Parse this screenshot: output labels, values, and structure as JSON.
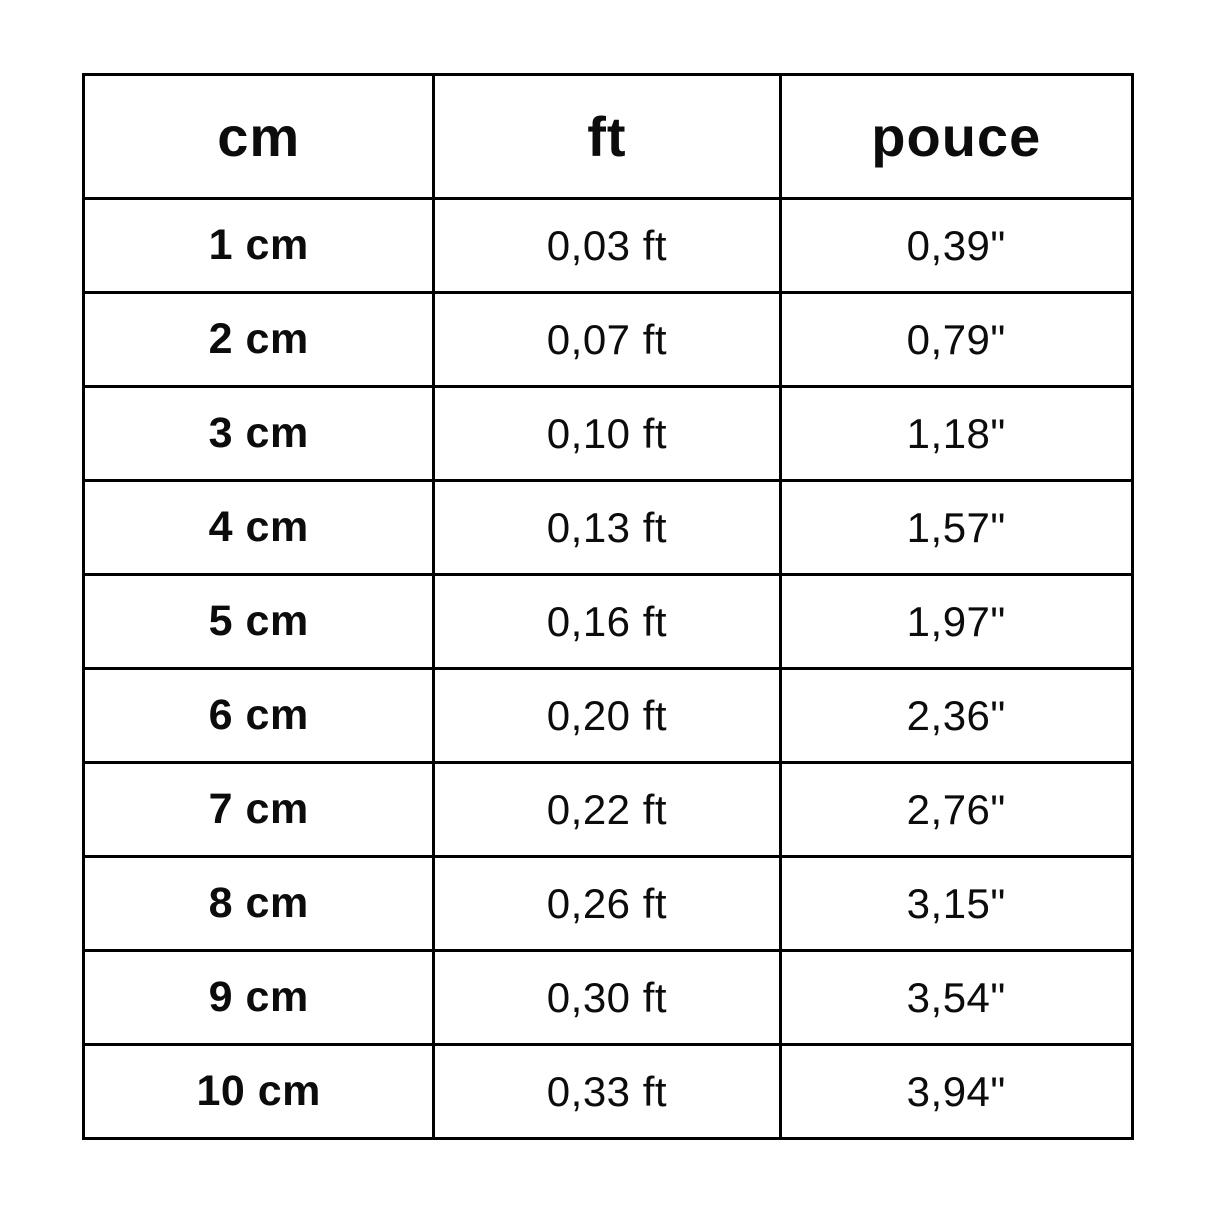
{
  "table": {
    "headers": [
      "cm",
      "ft",
      "pouce"
    ],
    "rows": [
      [
        "1 cm",
        "0,03 ft",
        "0,39\""
      ],
      [
        "2 cm",
        "0,07 ft",
        "0,79\""
      ],
      [
        "3 cm",
        "0,10 ft",
        "1,18\""
      ],
      [
        "4 cm",
        "0,13 ft",
        "1,57\""
      ],
      [
        "5 cm",
        "0,16 ft",
        "1,97\""
      ],
      [
        "6 cm",
        "0,20 ft",
        "2,36\""
      ],
      [
        "7 cm",
        "0,22 ft",
        "2,76\""
      ],
      [
        "8 cm",
        "0,26 ft",
        "3,15\""
      ],
      [
        "9 cm",
        "0,30 ft",
        "3,54\""
      ],
      [
        "10 cm",
        "0,33 ft",
        "3,94\""
      ]
    ]
  },
  "chart_data": {
    "type": "table",
    "title": "",
    "columns": [
      "cm",
      "ft",
      "pouce"
    ],
    "cm_values": [
      1,
      2,
      3,
      4,
      5,
      6,
      7,
      8,
      9,
      10
    ],
    "ft_values": [
      0.03,
      0.07,
      0.1,
      0.13,
      0.16,
      0.2,
      0.22,
      0.26,
      0.3,
      0.33
    ],
    "pouce_values": [
      0.39,
      0.79,
      1.18,
      1.57,
      1.97,
      2.36,
      2.76,
      3.15,
      3.54,
      3.94
    ]
  },
  "colors": {
    "background": "#ffffff",
    "border": "#000000",
    "text": "#0c0c0c"
  }
}
